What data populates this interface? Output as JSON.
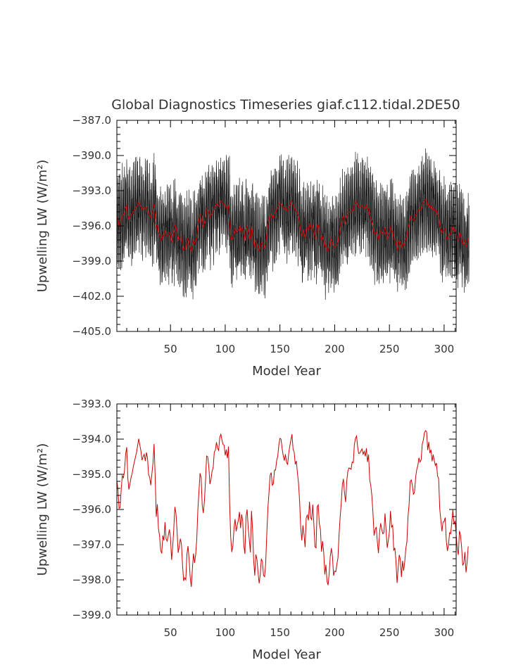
{
  "figure": {
    "title": "Global Diagnostics Timeseries giaf.c112.tidal.2DE50"
  },
  "colors": {
    "background": "#ffffff",
    "axes": "#000000",
    "text": "#333333",
    "monthly_series": "#000000",
    "annual_series": "#cc0000"
  },
  "chart_data": [
    {
      "type": "line",
      "title": "Global Diagnostics Timeseries giaf.c112.tidal.2DE50",
      "xlabel": "Model Year",
      "ylabel": "Upwelling LW (W/m²)",
      "xlim": [
        1,
        311
      ],
      "ylim": [
        -405.0,
        -387.0
      ],
      "xticks": [
        50,
        100,
        150,
        200,
        250,
        300
      ],
      "xtick_labels": [
        "50",
        "100",
        "150",
        "200",
        "250",
        "300"
      ],
      "yticks": [
        -405.0,
        -402.0,
        -399.0,
        -396.0,
        -393.0,
        -390.0,
        -387.0
      ],
      "ytick_labels": [
        "−405.0",
        "−402.0",
        "−399.0",
        "−396.0",
        "−393.0",
        "−390.0",
        "−387.0"
      ],
      "grid": false,
      "legend": "none",
      "series": [
        {
          "description": "monthly values (black, dense band)",
          "color": "#000000",
          "resolution": "monthly",
          "approx_band": {
            "min": -402.3,
            "max": -389.4
          },
          "seasonal_amplitude": 6.0
        },
        {
          "description": "annual mean (red), same as lower panel",
          "color": "#cc0000",
          "resolution": "annual"
        }
      ]
    },
    {
      "type": "line",
      "title": "",
      "xlabel": "Model Year",
      "ylabel": "Upwelling LW (W/m²)",
      "xlim": [
        1,
        311
      ],
      "ylim": [
        -399.0,
        -393.0
      ],
      "xticks": [
        50,
        100,
        150,
        200,
        250,
        300
      ],
      "xtick_labels": [
        "50",
        "100",
        "150",
        "200",
        "250",
        "300"
      ],
      "yticks": [
        -399.0,
        -398.0,
        -397.0,
        -396.0,
        -395.0,
        -394.0,
        -393.0
      ],
      "ytick_labels": [
        "−399.0",
        "−398.0",
        "−397.0",
        "−396.0",
        "−395.0",
        "−394.0",
        "−393.0"
      ],
      "grid": false,
      "legend": "none",
      "series": [
        {
          "color": "#cc0000",
          "x_start": 1,
          "x_step": 1,
          "values": [
            -395.18,
            -395.43,
            -395.97,
            -395.95,
            -395.41,
            -395.04,
            -395.1,
            -394.9,
            -394.43,
            -394.23,
            -395.11,
            -395.43,
            -395.27,
            -395.09,
            -394.97,
            -394.79,
            -394.65,
            -394.51,
            -394.37,
            -394.18,
            -393.99,
            -394.17,
            -394.34,
            -394.6,
            -394.5,
            -394.43,
            -394.62,
            -394.38,
            -394.54,
            -395.01,
            -395.09,
            -395.31,
            -394.99,
            -394.68,
            -394.14,
            -395.05,
            -396.21,
            -395.85,
            -396.55,
            -396.74,
            -397.16,
            -397.25,
            -396.74,
            -396.88,
            -396.36,
            -396.84,
            -396.9,
            -396.74,
            -396.57,
            -396.81,
            -397.43,
            -397.07,
            -396.56,
            -395.93,
            -396.11,
            -396.61,
            -397.23,
            -397.06,
            -396.83,
            -396.98,
            -397.58,
            -398.03,
            -397.94,
            -398.0,
            -397.28,
            -397.04,
            -397.42,
            -397.93,
            -398.2,
            -397.69,
            -397.25,
            -397.52,
            -397.28,
            -396.85,
            -396.01,
            -395.49,
            -394.97,
            -395.1,
            -395.89,
            -396.1,
            -395.76,
            -395.18,
            -394.48,
            -394.5,
            -394.78,
            -395.28,
            -395.14,
            -394.91,
            -394.81,
            -394.37,
            -394.31,
            -394.09,
            -394.26,
            -394.32,
            -393.95,
            -393.86,
            -394.02,
            -394.15,
            -394.17,
            -394.46,
            -394.3,
            -394.54,
            -394.21,
            -395.79,
            -396.78,
            -397.21,
            -397.04,
            -396.54,
            -396.27,
            -396.62,
            -396.44,
            -396.3,
            -396.07,
            -396.53,
            -396.14,
            -396.33,
            -397.02,
            -397.26,
            -396.2,
            -396.0,
            -396.52,
            -396.86,
            -397.22,
            -396.04,
            -396.56,
            -397.45,
            -397.88,
            -397.28,
            -397.42,
            -397.79,
            -398.1,
            -397.85,
            -397.4,
            -397.48,
            -397.87,
            -397.91,
            -397.5,
            -396.68,
            -395.96,
            -395.52,
            -395.03,
            -394.95,
            -395.31,
            -395.27,
            -394.88,
            -394.88,
            -394.61,
            -394.49,
            -394.16,
            -393.98,
            -394.0,
            -394.27,
            -394.47,
            -394.61,
            -394.43,
            -394.65,
            -394.73,
            -394.4,
            -394.2,
            -394.03,
            -393.86,
            -394.29,
            -394.37,
            -394.72,
            -394.62,
            -394.97,
            -395.26,
            -395.79,
            -396.52,
            -396.88,
            -396.45,
            -396.71,
            -397.07,
            -396.24,
            -396.16,
            -396.31,
            -395.78,
            -396.23,
            -396.29,
            -395.86,
            -396.42,
            -397.06,
            -397.09,
            -395.92,
            -395.87,
            -396.41,
            -396.57,
            -397.2,
            -396.9,
            -397.23,
            -397.85,
            -397.57,
            -398.04,
            -398.15,
            -397.81,
            -397.32,
            -397.1,
            -397.34,
            -397.88,
            -397.75,
            -397.77,
            -397.56,
            -397.38,
            -396.72,
            -396.22,
            -395.82,
            -395.3,
            -395.13,
            -395.54,
            -395.79,
            -395.21,
            -394.92,
            -394.82,
            -394.83,
            -394.86,
            -394.65,
            -394.67,
            -394.15,
            -393.98,
            -393.91,
            -394.23,
            -394.41,
            -394.4,
            -394.33,
            -394.28,
            -394.43,
            -394.35,
            -394.49,
            -394.26,
            -394.65,
            -394.44,
            -395.15,
            -395.32,
            -395.62,
            -396.11,
            -396.74,
            -396.57,
            -396.5,
            -396.92,
            -397.24,
            -396.67,
            -396.39,
            -396.56,
            -396.69,
            -396.66,
            -396.11,
            -396.61,
            -397.09,
            -396.88,
            -396.64,
            -396.04,
            -396.5,
            -396.45,
            -397.17,
            -397.09,
            -397.47,
            -398.09,
            -397.67,
            -397.29,
            -397.42,
            -397.92,
            -397.46,
            -397.74,
            -397.5,
            -397.11,
            -396.92,
            -396.2,
            -395.86,
            -395.2,
            -395.16,
            -395.32,
            -395.58,
            -395.49,
            -395.08,
            -394.86,
            -394.75,
            -394.53,
            -394.65,
            -394.59,
            -394.15,
            -394.03,
            -393.82,
            -393.76,
            -393.79,
            -394.31,
            -394.08,
            -394.4,
            -394.3,
            -394.63,
            -394.44,
            -394.61,
            -394.75,
            -394.68,
            -395.05,
            -395.12,
            -395.98,
            -396.3,
            -396.62,
            -396.36,
            -396.34,
            -396.23,
            -396.89,
            -397.18,
            -396.99,
            -396.66,
            -396.69,
            -396.36,
            -396.01,
            -396.4,
            -396.34,
            -396.7,
            -397.12,
            -397.29,
            -396.61,
            -396.73,
            -397.08,
            -397.59,
            -397.52,
            -397.21,
            -397.79,
            -397.51,
            -397.05
          ]
        }
      ]
    }
  ]
}
